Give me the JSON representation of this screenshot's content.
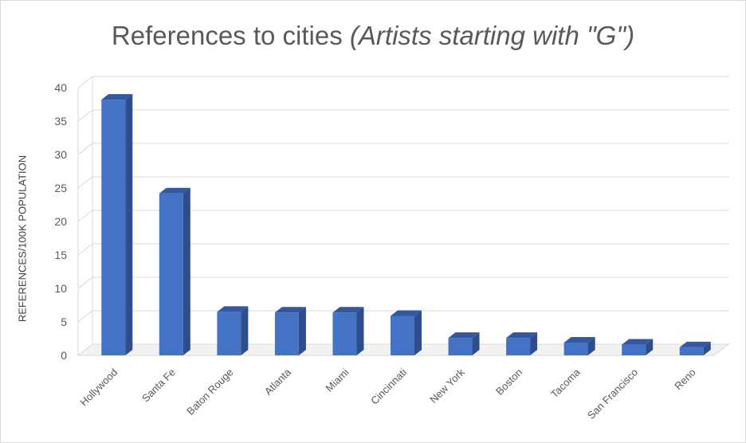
{
  "chart_data": {
    "type": "bar",
    "title": "References to cities",
    "title_italic": "(Artists starting with \"G\")",
    "xlabel": "",
    "ylabel": "REFERENCES/100K POPULATION",
    "ylim": [
      0,
      40
    ],
    "yticks": [
      0,
      5,
      10,
      15,
      20,
      25,
      30,
      35,
      40
    ],
    "categories": [
      "Hollywood",
      "Santa Fe",
      "Baton Rouge",
      "Atlanta",
      "Miami",
      "Cincinnati",
      "New York",
      "Boston",
      "Tacoma",
      "San Francisco",
      "Reno"
    ],
    "values": [
      38.2,
      24.2,
      6.5,
      6.4,
      6.4,
      5.9,
      2.6,
      2.6,
      1.9,
      1.6,
      1.2
    ],
    "grid": true,
    "legend": "none",
    "style": "3d-column",
    "colors": {
      "front": "#4472c4",
      "side": "#2e4d8c",
      "top": "#3458a0",
      "grid": "#d9d9d9"
    }
  }
}
